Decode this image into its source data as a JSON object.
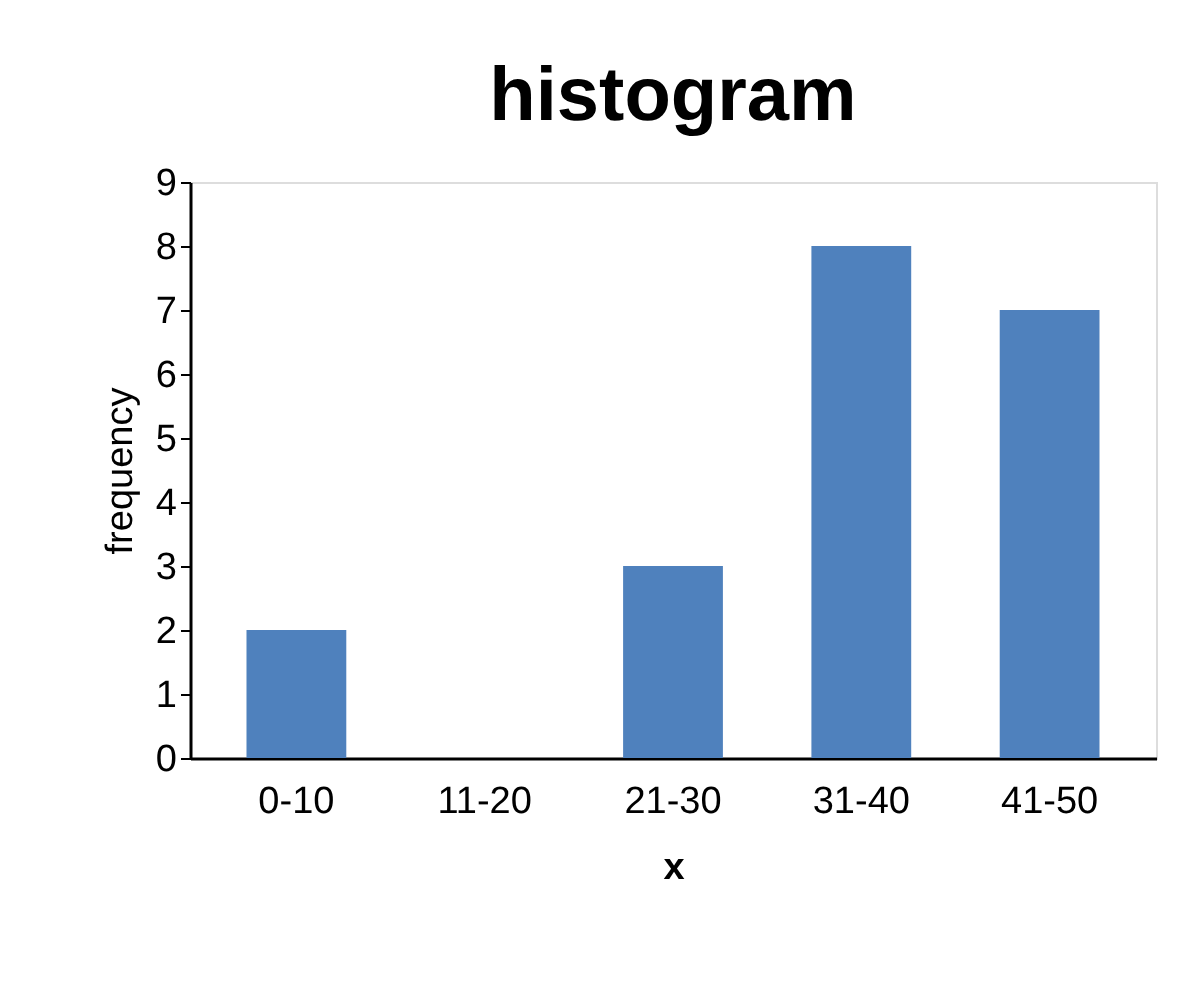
{
  "chart_data": {
    "type": "bar",
    "title": "histogram",
    "xlabel": "x",
    "ylabel": "frequency",
    "categories": [
      "0-10",
      "11-20",
      "21-30",
      "31-40",
      "41-50"
    ],
    "values": [
      2,
      0,
      3,
      8,
      7
    ],
    "color": "#4f81bd",
    "ylim": [
      0,
      9
    ],
    "yticks": [
      0,
      1,
      2,
      3,
      4,
      5,
      6,
      7,
      8,
      9
    ],
    "grid": false
  }
}
